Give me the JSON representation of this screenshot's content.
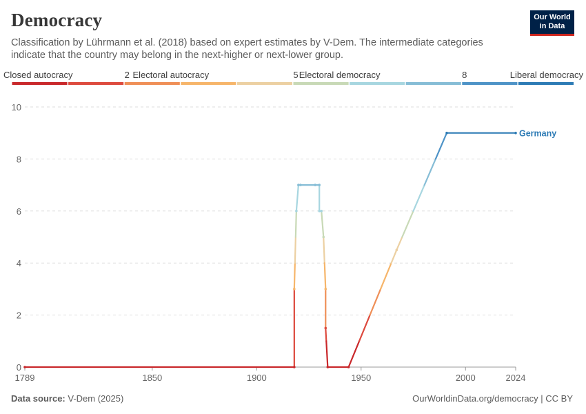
{
  "header": {
    "title": "Democracy",
    "subtitle": "Classification by Lührmann et al. (2018) based on expert estimates by V-Dem. The intermediate categories indicate that the country may belong in the next-higher or next-lower group.",
    "logo_line1": "Our World",
    "logo_line2": "in Data"
  },
  "footer": {
    "source_label": "Data source:",
    "source_value": "V-Dem (2025)",
    "attribution": "OurWorldinData.org/democracy | CC BY"
  },
  "colors": {
    "grid": "#dddddd",
    "axis": "#999999",
    "tick_text": "#666666",
    "series_label": "#2d7bb5",
    "scale": [
      "#c9282b",
      "#dd4a3e",
      "#ef8f57",
      "#f6b56a",
      "#ecd0a2",
      "#c8d9b6",
      "#a7d6e0",
      "#86bdd6",
      "#4e93c7",
      "#2d7bb5"
    ]
  },
  "chart_data": {
    "type": "line",
    "xlim": [
      1789,
      2024
    ],
    "ylim": [
      0,
      10
    ],
    "x_ticks": [
      1789,
      1850,
      1900,
      1950,
      2000,
      2024
    ],
    "y_ticks": [
      0,
      2,
      4,
      6,
      8,
      10
    ],
    "grid": true,
    "legend": {
      "placement": "top",
      "type": "color-scale",
      "labels": [
        {
          "text": "Closed autocracy",
          "value": 0
        },
        {
          "text": "2",
          "value": 2
        },
        {
          "text": "Electoral autocracy",
          "value": 3
        },
        {
          "text": "5",
          "value": 5
        },
        {
          "text": "Electoral democracy",
          "value": 6
        },
        {
          "text": "8",
          "value": 8
        },
        {
          "text": "Liberal democracy",
          "value": 9
        }
      ]
    },
    "series": [
      {
        "name": "Germany",
        "points": [
          [
            1789,
            0
          ],
          [
            1918,
            0
          ],
          [
            1918,
            3
          ],
          [
            1919,
            6
          ],
          [
            1920,
            7
          ],
          [
            1921,
            7
          ],
          [
            1928,
            7
          ],
          [
            1930,
            7
          ],
          [
            1930,
            6
          ],
          [
            1931,
            6
          ],
          [
            1932,
            5
          ],
          [
            1933,
            3
          ],
          [
            1933,
            1.5
          ],
          [
            1934,
            0
          ],
          [
            1944,
            0
          ],
          [
            1967,
            4.5
          ],
          [
            1991,
            9
          ],
          [
            2024,
            9
          ]
        ]
      }
    ]
  }
}
